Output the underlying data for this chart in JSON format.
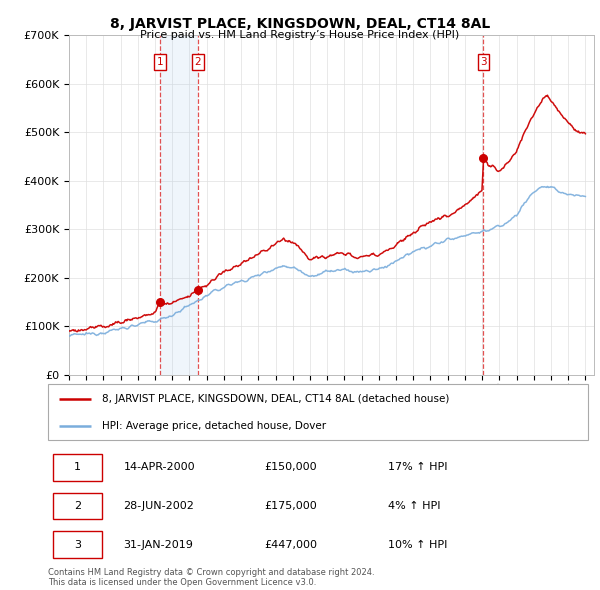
{
  "title": "8, JARVIST PLACE, KINGSDOWN, DEAL, CT14 8AL",
  "subtitle": "Price paid vs. HM Land Registry’s House Price Index (HPI)",
  "xlim_start": 1995.0,
  "xlim_end": 2025.5,
  "ylim_min": 0,
  "ylim_max": 700000,
  "yticks": [
    0,
    100000,
    200000,
    300000,
    400000,
    500000,
    600000,
    700000
  ],
  "ytick_labels": [
    "£0",
    "£100K",
    "£200K",
    "£300K",
    "£400K",
    "£500K",
    "£600K",
    "£700K"
  ],
  "sale_color": "#cc0000",
  "hpi_color": "#7aaddc",
  "transaction_dates": [
    2000.29,
    2002.49,
    2019.08
  ],
  "transaction_prices": [
    150000,
    175000,
    447000
  ],
  "transaction_labels": [
    "1",
    "2",
    "3"
  ],
  "shade_start": 2000.29,
  "shade_end": 2002.49,
  "legend_sale_label": "8, JARVIST PLACE, KINGSDOWN, DEAL, CT14 8AL (detached house)",
  "legend_hpi_label": "HPI: Average price, detached house, Dover",
  "table_rows": [
    [
      "1",
      "14-APR-2000",
      "£150,000",
      "17% ↑ HPI"
    ],
    [
      "2",
      "28-JUN-2002",
      "£175,000",
      "4% ↑ HPI"
    ],
    [
      "3",
      "31-JAN-2019",
      "£447,000",
      "10% ↑ HPI"
    ]
  ],
  "footnote": "Contains HM Land Registry data © Crown copyright and database right 2024.\nThis data is licensed under the Open Government Licence v3.0.",
  "background_color": "#ffffff",
  "grid_color": "#e0e0e0",
  "hpi_segments": [
    [
      1995.0,
      80000
    ],
    [
      1995.5,
      82000
    ],
    [
      1996.0,
      83500
    ],
    [
      1996.5,
      85000
    ],
    [
      1997.0,
      88000
    ],
    [
      1997.5,
      91000
    ],
    [
      1998.0,
      95000
    ],
    [
      1998.5,
      99000
    ],
    [
      1999.0,
      103000
    ],
    [
      1999.5,
      107000
    ],
    [
      2000.0,
      110000
    ],
    [
      2000.5,
      116000
    ],
    [
      2001.0,
      124000
    ],
    [
      2001.5,
      133000
    ],
    [
      2002.0,
      143000
    ],
    [
      2002.5,
      153000
    ],
    [
      2003.0,
      163000
    ],
    [
      2003.5,
      172000
    ],
    [
      2004.0,
      181000
    ],
    [
      2004.5,
      188000
    ],
    [
      2005.0,
      193000
    ],
    [
      2005.5,
      198000
    ],
    [
      2006.0,
      205000
    ],
    [
      2006.5,
      213000
    ],
    [
      2007.0,
      220000
    ],
    [
      2007.5,
      224000
    ],
    [
      2008.0,
      222000
    ],
    [
      2008.5,
      213000
    ],
    [
      2009.0,
      204000
    ],
    [
      2009.5,
      207000
    ],
    [
      2010.0,
      213000
    ],
    [
      2010.5,
      215000
    ],
    [
      2011.0,
      215000
    ],
    [
      2011.5,
      213000
    ],
    [
      2012.0,
      212000
    ],
    [
      2012.5,
      214000
    ],
    [
      2013.0,
      218000
    ],
    [
      2013.5,
      225000
    ],
    [
      2014.0,
      234000
    ],
    [
      2014.5,
      243000
    ],
    [
      2015.0,
      252000
    ],
    [
      2015.5,
      260000
    ],
    [
      2016.0,
      267000
    ],
    [
      2016.5,
      272000
    ],
    [
      2017.0,
      278000
    ],
    [
      2017.5,
      283000
    ],
    [
      2018.0,
      288000
    ],
    [
      2018.5,
      292000
    ],
    [
      2019.0,
      295000
    ],
    [
      2019.5,
      300000
    ],
    [
      2020.0,
      305000
    ],
    [
      2020.5,
      315000
    ],
    [
      2021.0,
      330000
    ],
    [
      2021.5,
      355000
    ],
    [
      2022.0,
      378000
    ],
    [
      2022.5,
      388000
    ],
    [
      2023.0,
      385000
    ],
    [
      2023.5,
      378000
    ],
    [
      2024.0,
      372000
    ],
    [
      2024.5,
      370000
    ],
    [
      2025.0,
      368000
    ]
  ],
  "sale_segments": [
    [
      1995.0,
      90000
    ],
    [
      1995.5,
      92000
    ],
    [
      1996.0,
      94000
    ],
    [
      1996.5,
      97000
    ],
    [
      1997.0,
      100000
    ],
    [
      1997.5,
      104000
    ],
    [
      1998.0,
      108000
    ],
    [
      1998.5,
      113000
    ],
    [
      1999.0,
      118000
    ],
    [
      1999.5,
      123000
    ],
    [
      2000.0,
      128000
    ],
    [
      2000.3,
      150000
    ],
    [
      2000.5,
      145000
    ],
    [
      2001.0,
      148000
    ],
    [
      2001.5,
      156000
    ],
    [
      2002.0,
      163000
    ],
    [
      2002.5,
      175000
    ],
    [
      2002.6,
      175000
    ],
    [
      2003.0,
      185000
    ],
    [
      2003.5,
      198000
    ],
    [
      2004.0,
      210000
    ],
    [
      2004.5,
      220000
    ],
    [
      2005.0,
      230000
    ],
    [
      2005.5,
      238000
    ],
    [
      2006.0,
      248000
    ],
    [
      2006.5,
      258000
    ],
    [
      2007.0,
      268000
    ],
    [
      2007.5,
      280000
    ],
    [
      2008.0,
      275000
    ],
    [
      2008.5,
      258000
    ],
    [
      2009.0,
      238000
    ],
    [
      2009.5,
      240000
    ],
    [
      2010.0,
      245000
    ],
    [
      2010.5,
      248000
    ],
    [
      2011.0,
      248000
    ],
    [
      2011.5,
      246000
    ],
    [
      2012.0,
      243000
    ],
    [
      2012.5,
      245000
    ],
    [
      2013.0,
      250000
    ],
    [
      2013.5,
      258000
    ],
    [
      2014.0,
      268000
    ],
    [
      2014.5,
      280000
    ],
    [
      2015.0,
      292000
    ],
    [
      2015.5,
      305000
    ],
    [
      2016.0,
      315000
    ],
    [
      2016.5,
      322000
    ],
    [
      2017.0,
      330000
    ],
    [
      2017.5,
      340000
    ],
    [
      2018.0,
      350000
    ],
    [
      2018.5,
      365000
    ],
    [
      2019.0,
      380000
    ],
    [
      2019.08,
      447000
    ],
    [
      2019.5,
      430000
    ],
    [
      2020.0,
      420000
    ],
    [
      2020.5,
      435000
    ],
    [
      2021.0,
      460000
    ],
    [
      2021.5,
      500000
    ],
    [
      2022.0,
      540000
    ],
    [
      2022.5,
      570000
    ],
    [
      2022.8,
      580000
    ],
    [
      2023.0,
      565000
    ],
    [
      2023.5,
      545000
    ],
    [
      2024.0,
      520000
    ],
    [
      2024.5,
      505000
    ],
    [
      2025.0,
      495000
    ]
  ]
}
